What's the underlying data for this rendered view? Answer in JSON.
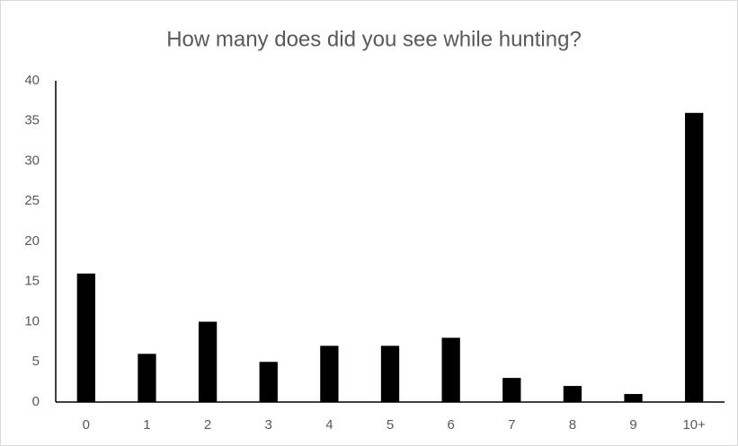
{
  "chart_data": {
    "type": "bar",
    "title": "How many does did you see while hunting?",
    "categories": [
      "0",
      "1",
      "2",
      "3",
      "4",
      "5",
      "6",
      "7",
      "8",
      "9",
      "10+"
    ],
    "values": [
      16,
      6,
      10,
      5,
      7,
      7,
      8,
      3,
      2,
      1,
      36
    ],
    "color": "#000000",
    "ylim": [
      0,
      40
    ],
    "yticks": [
      0,
      5,
      10,
      15,
      20,
      25,
      30,
      35,
      40
    ],
    "grid": false
  }
}
